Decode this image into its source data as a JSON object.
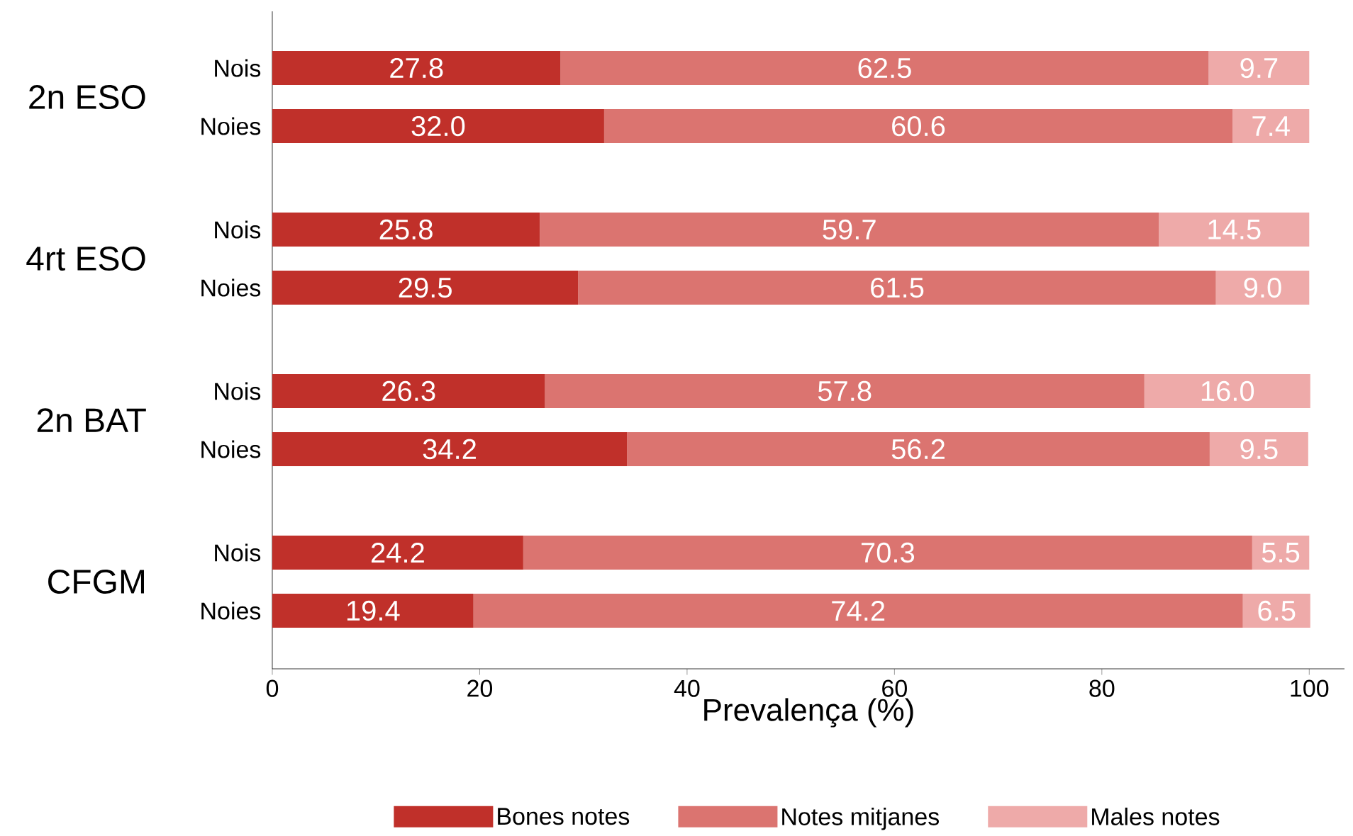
{
  "chart_data": {
    "type": "bar",
    "orientation": "horizontal",
    "stacked": true,
    "legend": "bottom",
    "grid": false,
    "xlabel": "Prevalença (%)",
    "categories": [
      "Nois",
      "Noies",
      "Nois",
      "Noies",
      "Nois",
      "Noies",
      "Nois",
      "Noies"
    ],
    "annotations": [
      "2n ESO",
      "4rt ESO",
      "2n BAT",
      "CFGM"
    ],
    "xlim": [
      0,
      103.4
    ],
    "xticks": [
      0,
      20,
      40,
      60,
      80,
      100
    ],
    "series": [
      {
        "name": "Bones notes",
        "color": "#c0302a",
        "values": [
          27.8,
          32.0,
          25.8,
          29.5,
          26.3,
          34.2,
          24.2,
          19.4
        ],
        "value_labels": [
          "27.8",
          "32.0",
          "25.8",
          "29.5",
          "26.3",
          "34.2",
          "24.2",
          "19.4"
        ]
      },
      {
        "name": "Notes mitjanes",
        "color": "#db7470",
        "values": [
          62.5,
          60.6,
          59.7,
          61.5,
          57.8,
          56.2,
          70.3,
          74.2
        ],
        "value_labels": [
          "62.5",
          "60.6",
          "59.7",
          "61.5",
          "57.8",
          "56.2",
          "70.3",
          "74.2"
        ]
      },
      {
        "name": "Males notes",
        "color": "#eeaaa9",
        "values": [
          9.7,
          7.4,
          14.5,
          9.0,
          16.0,
          9.5,
          5.5,
          6.5
        ],
        "value_labels": [
          "9.7",
          "7.4",
          "14.5",
          "9.0",
          "16.0",
          "9.5",
          "5.5",
          "6.5"
        ]
      }
    ]
  }
}
